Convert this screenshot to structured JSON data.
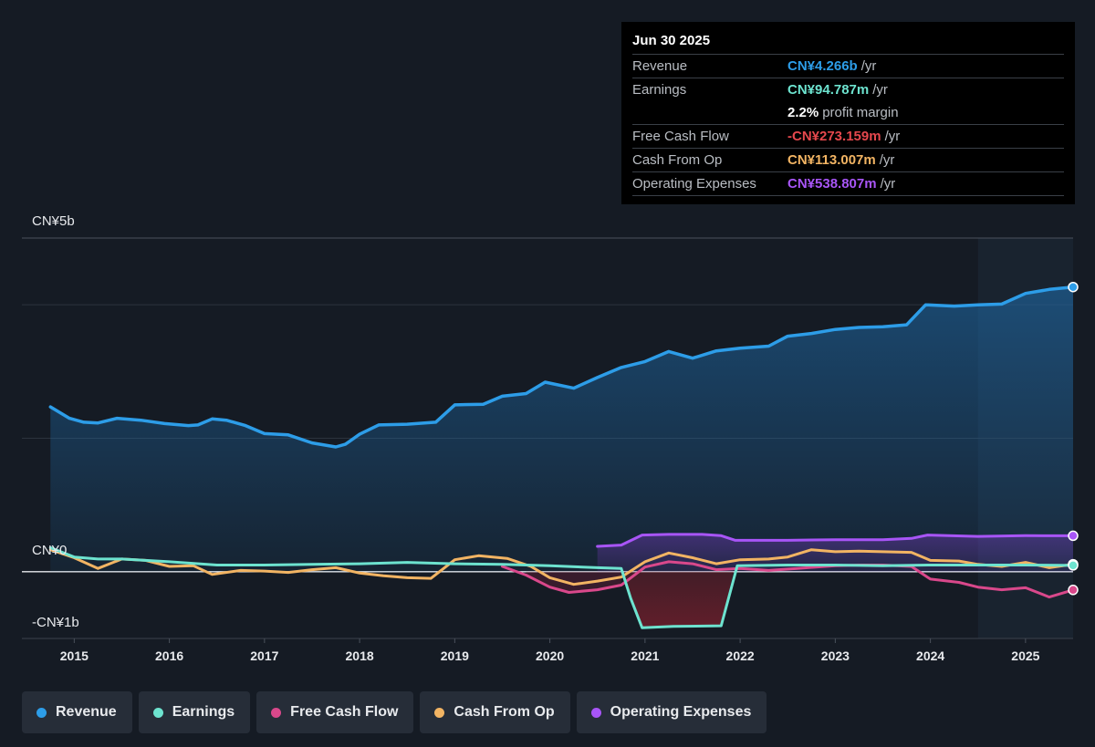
{
  "tooltip": {
    "date": "Jun 30 2025",
    "rows": [
      {
        "label": "Revenue",
        "value": "CN¥4.266b",
        "unit": "/yr",
        "color": "#2d9de8"
      },
      {
        "label": "Earnings",
        "value": "CN¥94.787m",
        "unit": "/yr",
        "color": "#6de3cf"
      },
      {
        "label": "",
        "value": "2.2%",
        "unit": "profit margin",
        "color": "#ffffff"
      },
      {
        "label": "Free Cash Flow",
        "value": "-CN¥273.159m",
        "unit": "/yr",
        "color": "#e5484d"
      },
      {
        "label": "Cash From Op",
        "value": "CN¥113.007m",
        "unit": "/yr",
        "color": "#f2b463"
      },
      {
        "label": "Operating Expenses",
        "value": "CN¥538.807m",
        "unit": "/yr",
        "color": "#a855f7"
      }
    ]
  },
  "legend": [
    {
      "label": "Revenue",
      "color": "#2d9de8"
    },
    {
      "label": "Earnings",
      "color": "#6de3cf"
    },
    {
      "label": "Free Cash Flow",
      "color": "#d9488b"
    },
    {
      "label": "Cash From Op",
      "color": "#f2b463"
    },
    {
      "label": "Operating Expenses",
      "color": "#a855f7"
    }
  ],
  "chart_data": {
    "type": "line",
    "y_tick_labels": [
      "CN¥5b",
      "CN¥0",
      "-CN¥1b"
    ],
    "y_ticks": [
      5,
      0,
      -1
    ],
    "ylim": [
      -1,
      5
    ],
    "xlim": [
      2014.45,
      2025.5
    ],
    "x_tick_labels": [
      "2015",
      "2016",
      "2017",
      "2018",
      "2019",
      "2020",
      "2021",
      "2022",
      "2023",
      "2024",
      "2025"
    ],
    "x_ticks": [
      2015,
      2016,
      2017,
      2018,
      2019,
      2020,
      2021,
      2022,
      2023,
      2024,
      2025
    ],
    "forecast_start": 2024.5,
    "series": [
      {
        "name": "Revenue",
        "color": "#2d9de8",
        "fill": true,
        "points": [
          [
            2014.75,
            2.47
          ],
          [
            2014.95,
            2.3
          ],
          [
            2015.1,
            2.24
          ],
          [
            2015.25,
            2.23
          ],
          [
            2015.45,
            2.3
          ],
          [
            2015.7,
            2.27
          ],
          [
            2015.95,
            2.22
          ],
          [
            2016.2,
            2.19
          ],
          [
            2016.3,
            2.2
          ],
          [
            2016.45,
            2.29
          ],
          [
            2016.6,
            2.27
          ],
          [
            2016.8,
            2.19
          ],
          [
            2017.0,
            2.07
          ],
          [
            2017.25,
            2.05
          ],
          [
            2017.5,
            1.93
          ],
          [
            2017.75,
            1.87
          ],
          [
            2017.85,
            1.91
          ],
          [
            2018.0,
            2.06
          ],
          [
            2018.2,
            2.2
          ],
          [
            2018.5,
            2.21
          ],
          [
            2018.8,
            2.24
          ],
          [
            2019.0,
            2.5
          ],
          [
            2019.3,
            2.51
          ],
          [
            2019.5,
            2.63
          ],
          [
            2019.75,
            2.67
          ],
          [
            2019.95,
            2.84
          ],
          [
            2020.25,
            2.75
          ],
          [
            2020.5,
            2.91
          ],
          [
            2020.75,
            3.06
          ],
          [
            2021.0,
            3.15
          ],
          [
            2021.25,
            3.3
          ],
          [
            2021.5,
            3.2
          ],
          [
            2021.75,
            3.31
          ],
          [
            2022.0,
            3.35
          ],
          [
            2022.3,
            3.38
          ],
          [
            2022.5,
            3.53
          ],
          [
            2022.75,
            3.57
          ],
          [
            2023.0,
            3.63
          ],
          [
            2023.25,
            3.66
          ],
          [
            2023.5,
            3.67
          ],
          [
            2023.75,
            3.7
          ],
          [
            2023.95,
            4.0
          ],
          [
            2024.25,
            3.98
          ],
          [
            2024.5,
            4.0
          ],
          [
            2024.75,
            4.01
          ],
          [
            2025.0,
            4.17
          ],
          [
            2025.25,
            4.23
          ],
          [
            2025.5,
            4.266
          ]
        ]
      },
      {
        "name": "Earnings",
        "color": "#6de3cf",
        "fill": false,
        "points": [
          [
            2014.75,
            0.36
          ],
          [
            2015.0,
            0.22
          ],
          [
            2015.25,
            0.19
          ],
          [
            2015.5,
            0.19
          ],
          [
            2016.0,
            0.15
          ],
          [
            2016.5,
            0.1
          ],
          [
            2017.0,
            0.1
          ],
          [
            2017.5,
            0.11
          ],
          [
            2018.0,
            0.12
          ],
          [
            2018.5,
            0.14
          ],
          [
            2019.0,
            0.12
          ],
          [
            2019.5,
            0.11
          ],
          [
            2020.0,
            0.09
          ],
          [
            2020.5,
            0.06
          ],
          [
            2020.75,
            0.05
          ],
          [
            2020.85,
            -0.4
          ],
          [
            2020.97,
            -0.84
          ],
          [
            2021.3,
            -0.82
          ],
          [
            2021.8,
            -0.81
          ],
          [
            2021.97,
            0.09
          ],
          [
            2022.5,
            0.1
          ],
          [
            2023.0,
            0.1
          ],
          [
            2023.5,
            0.09
          ],
          [
            2024.0,
            0.1
          ],
          [
            2024.5,
            0.1
          ],
          [
            2025.0,
            0.1
          ],
          [
            2025.5,
            0.095
          ]
        ]
      },
      {
        "name": "Free Cash Flow",
        "color": "#d9488b",
        "fill": false,
        "points": [
          [
            2019.5,
            0.08
          ],
          [
            2019.75,
            -0.05
          ],
          [
            2020.0,
            -0.23
          ],
          [
            2020.2,
            -0.31
          ],
          [
            2020.5,
            -0.27
          ],
          [
            2020.75,
            -0.2
          ],
          [
            2021.0,
            0.07
          ],
          [
            2021.25,
            0.15
          ],
          [
            2021.5,
            0.12
          ],
          [
            2021.75,
            0.03
          ],
          [
            2022.0,
            0.05
          ],
          [
            2022.3,
            0.02
          ],
          [
            2022.6,
            0.05
          ],
          [
            2023.0,
            0.09
          ],
          [
            2023.25,
            0.1
          ],
          [
            2023.5,
            0.1
          ],
          [
            2023.8,
            0.08
          ],
          [
            2024.0,
            -0.11
          ],
          [
            2024.3,
            -0.16
          ],
          [
            2024.5,
            -0.23
          ],
          [
            2024.75,
            -0.27
          ],
          [
            2025.0,
            -0.24
          ],
          [
            2025.25,
            -0.38
          ],
          [
            2025.5,
            -0.273
          ]
        ]
      },
      {
        "name": "Cash From Op",
        "color": "#f2b463",
        "fill": false,
        "points": [
          [
            2014.75,
            0.33
          ],
          [
            2015.0,
            0.21
          ],
          [
            2015.25,
            0.05
          ],
          [
            2015.5,
            0.19
          ],
          [
            2015.75,
            0.17
          ],
          [
            2016.0,
            0.08
          ],
          [
            2016.25,
            0.09
          ],
          [
            2016.45,
            -0.04
          ],
          [
            2016.75,
            0.02
          ],
          [
            2017.0,
            0.01
          ],
          [
            2017.25,
            -0.01
          ],
          [
            2017.5,
            0.03
          ],
          [
            2017.75,
            0.06
          ],
          [
            2018.0,
            -0.02
          ],
          [
            2018.25,
            -0.06
          ],
          [
            2018.5,
            -0.09
          ],
          [
            2018.75,
            -0.1
          ],
          [
            2019.0,
            0.18
          ],
          [
            2019.25,
            0.24
          ],
          [
            2019.55,
            0.2
          ],
          [
            2019.8,
            0.08
          ],
          [
            2020.0,
            -0.09
          ],
          [
            2020.25,
            -0.19
          ],
          [
            2020.5,
            -0.14
          ],
          [
            2020.75,
            -0.08
          ],
          [
            2021.0,
            0.15
          ],
          [
            2021.25,
            0.28
          ],
          [
            2021.5,
            0.21
          ],
          [
            2021.75,
            0.12
          ],
          [
            2022.0,
            0.18
          ],
          [
            2022.3,
            0.19
          ],
          [
            2022.5,
            0.22
          ],
          [
            2022.75,
            0.33
          ],
          [
            2023.0,
            0.3
          ],
          [
            2023.25,
            0.31
          ],
          [
            2023.5,
            0.3
          ],
          [
            2023.8,
            0.29
          ],
          [
            2024.0,
            0.17
          ],
          [
            2024.3,
            0.16
          ],
          [
            2024.5,
            0.11
          ],
          [
            2024.75,
            0.08
          ],
          [
            2025.0,
            0.14
          ],
          [
            2025.25,
            0.06
          ],
          [
            2025.5,
            0.113
          ]
        ]
      },
      {
        "name": "Operating Expenses",
        "color": "#a855f7",
        "fill": true,
        "points": [
          [
            2020.5,
            0.38
          ],
          [
            2020.75,
            0.4
          ],
          [
            2020.97,
            0.55
          ],
          [
            2021.25,
            0.56
          ],
          [
            2021.6,
            0.56
          ],
          [
            2021.8,
            0.54
          ],
          [
            2021.95,
            0.47
          ],
          [
            2022.5,
            0.47
          ],
          [
            2023.0,
            0.48
          ],
          [
            2023.5,
            0.48
          ],
          [
            2023.8,
            0.5
          ],
          [
            2023.97,
            0.55
          ],
          [
            2024.5,
            0.53
          ],
          [
            2025.0,
            0.54
          ],
          [
            2025.5,
            0.539
          ]
        ]
      }
    ]
  }
}
